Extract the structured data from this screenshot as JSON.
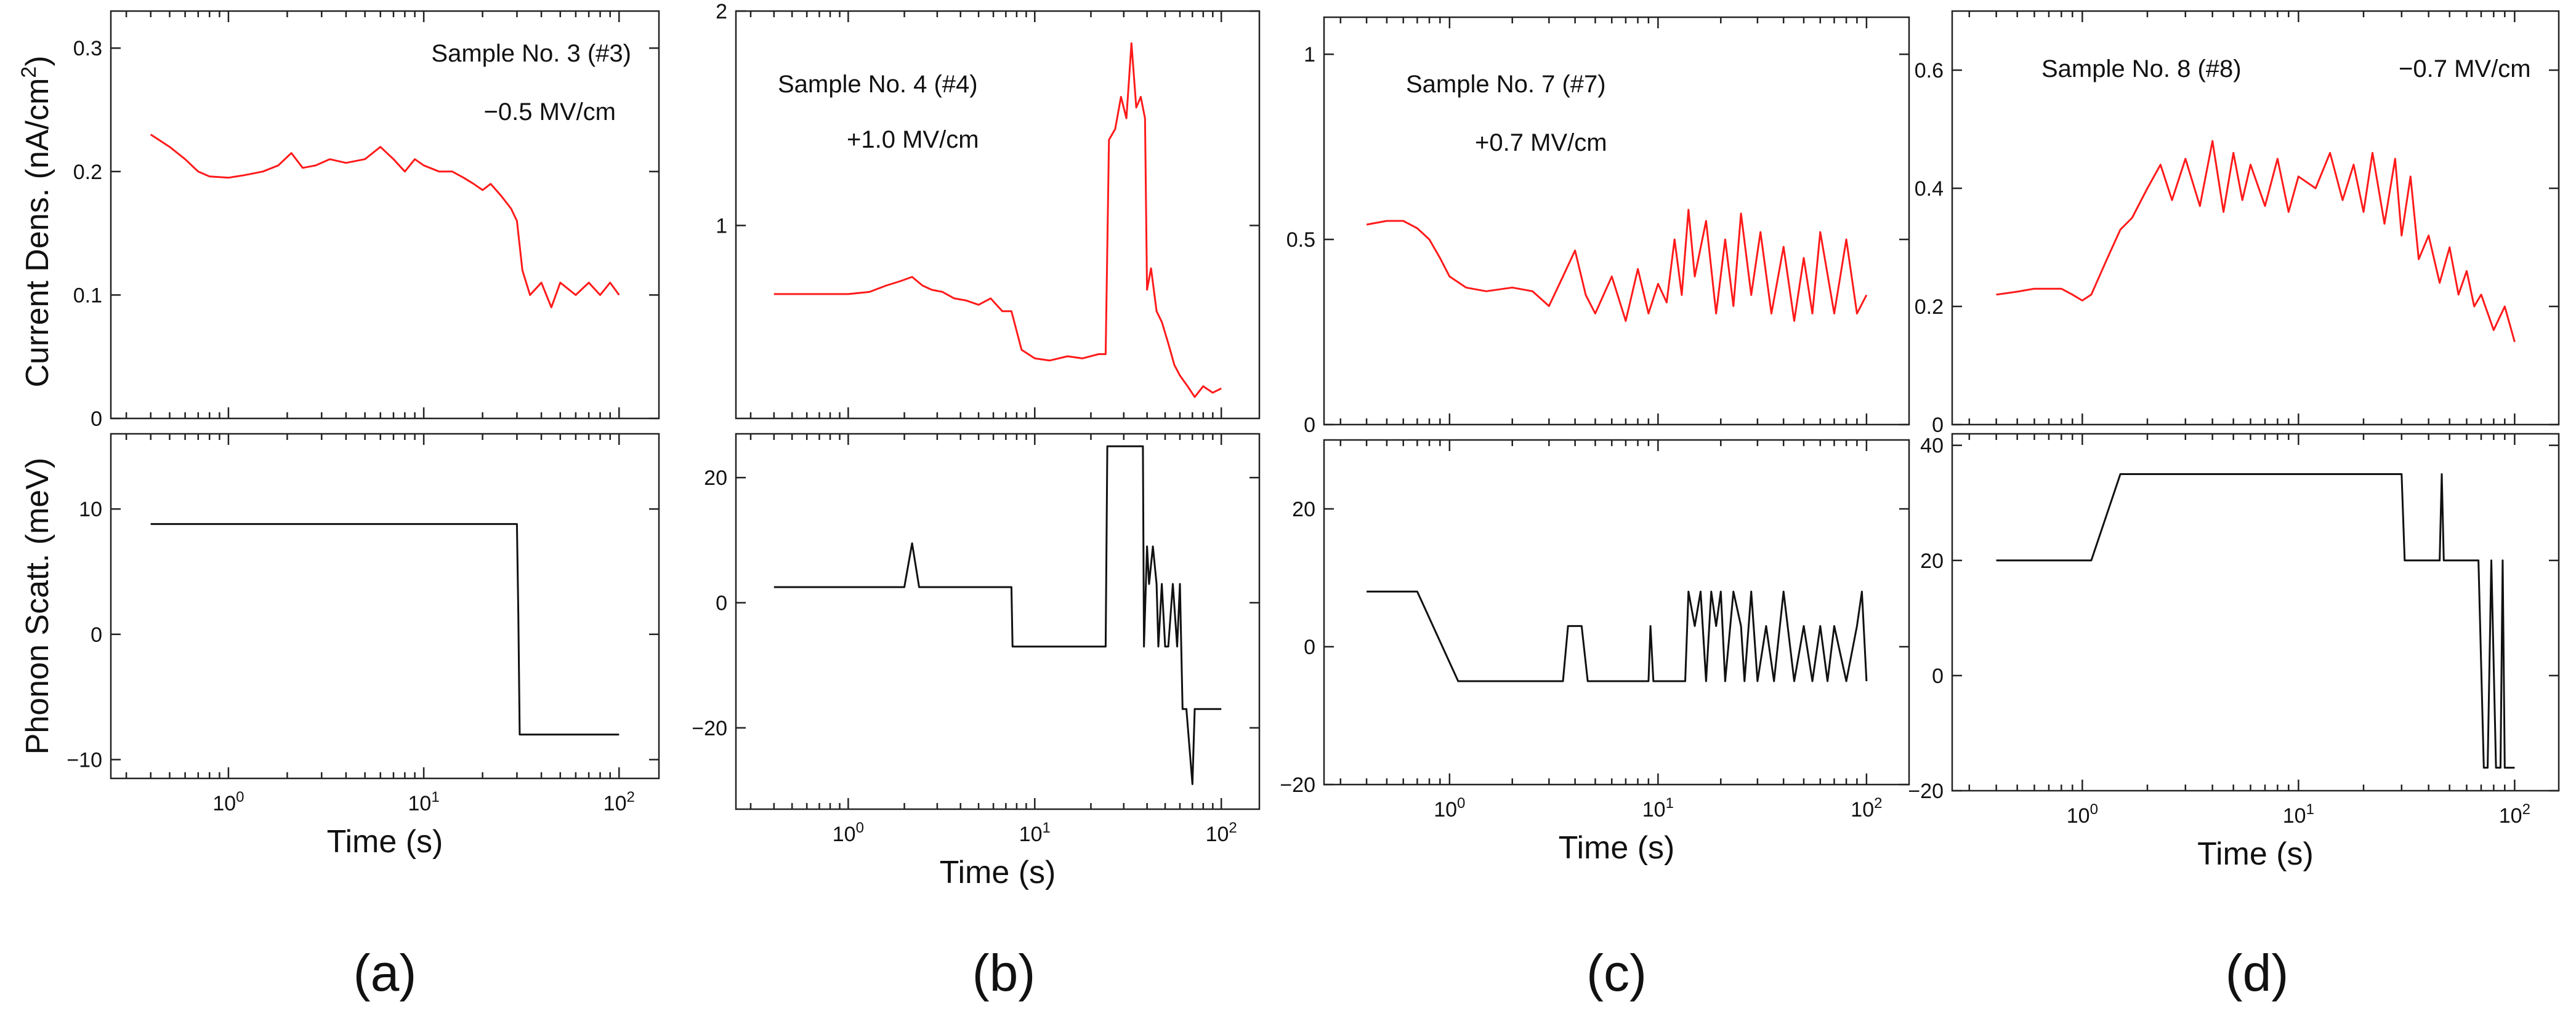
{
  "colors": {
    "current": "#ff1a1a",
    "phonon": "#111111",
    "axis": "#222222"
  },
  "shared": {
    "xlabel": "Time (s)",
    "ylabel_top": "Current Dens. (nA/cm",
    "ylabel_top_sup": "2",
    "ylabel_top_close": ")",
    "ylabel_bottom": "Phonon Scatt. (meV)",
    "xtick_base": "10",
    "xticks": [
      {
        "value": 1,
        "exp": "0"
      },
      {
        "value": 10,
        "exp": "1"
      },
      {
        "value": 100,
        "exp": "2"
      }
    ],
    "xscale": "log"
  },
  "chart_data": [
    {
      "type": "line",
      "panel_label": "(a)",
      "sample": "Sample No. 3 (#3)",
      "field": "−0.5 MV/cm",
      "xlim": [
        0.25,
        160
      ],
      "top": {
        "ylim": [
          0,
          0.33
        ],
        "yticks": [
          {
            "v": 0,
            "t": "0"
          },
          {
            "v": 0.1,
            "t": "0.1"
          },
          {
            "v": 0.2,
            "t": "0.2"
          },
          {
            "v": 0.3,
            "t": "0.3"
          }
        ],
        "x": [
          0.4,
          0.5,
          0.6,
          0.7,
          0.8,
          1.0,
          1.2,
          1.5,
          1.8,
          2.1,
          2.4,
          2.8,
          3.3,
          4,
          5,
          6,
          7,
          8,
          9,
          10,
          12,
          14,
          16,
          18,
          20,
          22,
          25,
          28,
          30,
          32,
          35,
          40,
          45,
          50,
          60,
          70,
          80,
          90,
          100
        ],
        "y": [
          0.23,
          0.22,
          0.21,
          0.2,
          0.196,
          0.195,
          0.197,
          0.2,
          0.205,
          0.215,
          0.203,
          0.205,
          0.21,
          0.207,
          0.21,
          0.22,
          0.21,
          0.2,
          0.21,
          0.205,
          0.2,
          0.2,
          0.195,
          0.19,
          0.185,
          0.19,
          0.18,
          0.17,
          0.16,
          0.12,
          0.1,
          0.11,
          0.09,
          0.11,
          0.1,
          0.11,
          0.1,
          0.11,
          0.1
        ]
      },
      "bottom": {
        "ylim": [
          -11.5,
          16
        ],
        "yticks": [
          {
            "v": -10,
            "t": "−10"
          },
          {
            "v": 0,
            "t": "0"
          },
          {
            "v": 10,
            "t": "10"
          }
        ],
        "x": [
          0.4,
          30,
          30.5,
          31,
          32,
          100
        ],
        "y": [
          8.8,
          8.8,
          1.5,
          -8,
          -8,
          -8
        ]
      }
    },
    {
      "type": "line",
      "panel_label": "(b)",
      "sample": "Sample No. 4 (#4)",
      "field": "+1.0 MV/cm",
      "xlim": [
        0.25,
        160
      ],
      "top": {
        "ylim": [
          0.1,
          2.0
        ],
        "yticks": [
          {
            "v": 1,
            "t": "1"
          },
          {
            "v": 2,
            "t": "2"
          }
        ],
        "x": [
          0.4,
          0.6,
          0.8,
          1.0,
          1.3,
          1.6,
          1.9,
          2.2,
          2.5,
          2.8,
          3.2,
          3.7,
          4.3,
          5,
          5.8,
          6.7,
          7.5,
          8.5,
          10,
          12,
          15,
          18,
          22,
          24,
          25,
          27,
          29,
          31,
          33,
          35,
          37,
          39,
          40,
          42,
          45,
          48,
          52,
          56,
          60,
          66,
          72,
          80,
          90,
          100
        ],
        "y": [
          0.68,
          0.68,
          0.68,
          0.68,
          0.69,
          0.72,
          0.74,
          0.76,
          0.72,
          0.7,
          0.69,
          0.66,
          0.65,
          0.63,
          0.66,
          0.6,
          0.6,
          0.42,
          0.38,
          0.37,
          0.39,
          0.38,
          0.4,
          0.4,
          1.4,
          1.45,
          1.6,
          1.5,
          1.85,
          1.55,
          1.6,
          1.5,
          0.7,
          0.8,
          0.6,
          0.55,
          0.45,
          0.35,
          0.3,
          0.25,
          0.2,
          0.25,
          0.22,
          0.24
        ]
      },
      "bottom": {
        "ylim": [
          -33,
          27
        ],
        "yticks": [
          {
            "v": -20,
            "t": "−20"
          },
          {
            "v": 0,
            "t": "0"
          },
          {
            "v": 20,
            "t": "20"
          }
        ],
        "x": [
          0.4,
          2.0,
          2.2,
          2.4,
          7.5,
          7.6,
          24,
          24.5,
          38,
          38.5,
          40,
          41,
          43,
          45,
          46,
          48,
          50,
          52,
          55,
          58,
          60,
          62,
          65,
          70,
          72,
          75,
          100
        ],
        "y": [
          2.5,
          2.5,
          9.5,
          2.5,
          2.5,
          -7,
          -7,
          25,
          25,
          -7,
          9,
          3,
          9,
          3,
          -7,
          3,
          -7,
          -7,
          3,
          -7,
          3,
          -17,
          -17,
          -29,
          -17,
          -17,
          -17
        ]
      }
    },
    {
      "type": "line",
      "panel_label": "(c)",
      "sample": "Sample No. 7 (#7)",
      "field": "+0.7 MV/cm",
      "xlim": [
        0.25,
        160
      ],
      "top": {
        "ylim": [
          0,
          1.1
        ],
        "yticks": [
          {
            "v": 0,
            "t": "0"
          },
          {
            "v": 0.5,
            "t": "0.5"
          },
          {
            "v": 1,
            "t": "1"
          }
        ],
        "x": [
          0.4,
          0.5,
          0.6,
          0.7,
          0.8,
          0.9,
          1.0,
          1.2,
          1.5,
          2,
          2.5,
          3,
          3.5,
          4,
          4.5,
          5,
          6,
          7,
          8,
          9,
          10,
          11,
          12,
          13,
          14,
          15,
          17,
          19,
          21,
          23,
          25,
          28,
          31,
          35,
          40,
          45,
          50,
          55,
          60,
          70,
          80,
          90,
          100
        ],
        "y": [
          0.54,
          0.55,
          0.55,
          0.53,
          0.5,
          0.45,
          0.4,
          0.37,
          0.36,
          0.37,
          0.36,
          0.32,
          0.4,
          0.47,
          0.35,
          0.3,
          0.4,
          0.28,
          0.42,
          0.3,
          0.38,
          0.33,
          0.5,
          0.35,
          0.58,
          0.4,
          0.55,
          0.3,
          0.5,
          0.32,
          0.57,
          0.35,
          0.52,
          0.3,
          0.48,
          0.28,
          0.45,
          0.3,
          0.52,
          0.3,
          0.5,
          0.3,
          0.35
        ]
      },
      "bottom": {
        "ylim": [
          -20,
          30
        ],
        "yticks": [
          {
            "v": -20,
            "t": "−20"
          },
          {
            "v": 0,
            "t": "0"
          },
          {
            "v": 20,
            "t": "20"
          }
        ],
        "x": [
          0.4,
          0.7,
          1.1,
          3.5,
          3.7,
          4.3,
          4.6,
          9,
          9.2,
          9.5,
          13.5,
          14,
          15,
          16,
          17,
          18,
          19,
          20,
          21,
          23,
          25,
          26,
          28,
          30,
          33,
          36,
          40,
          45,
          50,
          55,
          60,
          65,
          70,
          80,
          90,
          95,
          100
        ],
        "y": [
          8,
          8,
          -5,
          -5,
          3,
          3,
          -5,
          -5,
          3,
          -5,
          -5,
          8,
          3,
          8,
          -5,
          8,
          3,
          8,
          -5,
          8,
          3,
          -5,
          8,
          -5,
          3,
          -5,
          8,
          -5,
          3,
          -5,
          3,
          -5,
          3,
          -5,
          3,
          8,
          -5
        ]
      }
    },
    {
      "type": "line",
      "panel_label": "(d)",
      "sample": "Sample No. 8 (#8)",
      "field": "−0.7 MV/cm",
      "xlim": [
        0.25,
        160
      ],
      "top": {
        "ylim": [
          0,
          0.7
        ],
        "yticks": [
          {
            "v": 0,
            "t": "0"
          },
          {
            "v": 0.2,
            "t": "0.2"
          },
          {
            "v": 0.4,
            "t": "0.4"
          },
          {
            "v": 0.6,
            "t": "0.6"
          }
        ],
        "x": [
          0.4,
          0.5,
          0.6,
          0.7,
          0.8,
          0.9,
          1.0,
          1.1,
          1.3,
          1.5,
          1.7,
          2.0,
          2.3,
          2.6,
          3.0,
          3.5,
          4.0,
          4.5,
          5,
          5.5,
          6,
          7,
          8,
          9,
          10,
          12,
          14,
          16,
          18,
          20,
          22,
          25,
          28,
          30,
          33,
          36,
          40,
          45,
          50,
          55,
          60,
          65,
          70,
          80,
          90,
          100
        ],
        "y": [
          0.22,
          0.225,
          0.23,
          0.23,
          0.23,
          0.22,
          0.21,
          0.22,
          0.28,
          0.33,
          0.35,
          0.4,
          0.44,
          0.38,
          0.45,
          0.37,
          0.48,
          0.36,
          0.46,
          0.38,
          0.44,
          0.37,
          0.45,
          0.36,
          0.42,
          0.4,
          0.46,
          0.38,
          0.44,
          0.36,
          0.46,
          0.34,
          0.45,
          0.32,
          0.42,
          0.28,
          0.32,
          0.24,
          0.3,
          0.22,
          0.26,
          0.2,
          0.22,
          0.16,
          0.2,
          0.14
        ]
      },
      "bottom": {
        "ylim": [
          -20,
          42
        ],
        "yticks": [
          {
            "v": -20,
            "t": "−20"
          },
          {
            "v": 0,
            "t": "0"
          },
          {
            "v": 20,
            "t": "20"
          },
          {
            "v": 40,
            "t": "40"
          }
        ],
        "x": [
          0.4,
          1.1,
          1.5,
          30,
          31,
          45,
          46,
          47,
          65,
          68,
          72,
          74,
          75,
          78,
          82,
          86,
          88,
          90,
          94,
          100
        ],
        "y": [
          20,
          20,
          35,
          35,
          20,
          20,
          35,
          20,
          20,
          20,
          -16,
          -16,
          -16,
          20,
          -16,
          -16,
          20,
          -16,
          -16,
          -16
        ]
      }
    }
  ]
}
